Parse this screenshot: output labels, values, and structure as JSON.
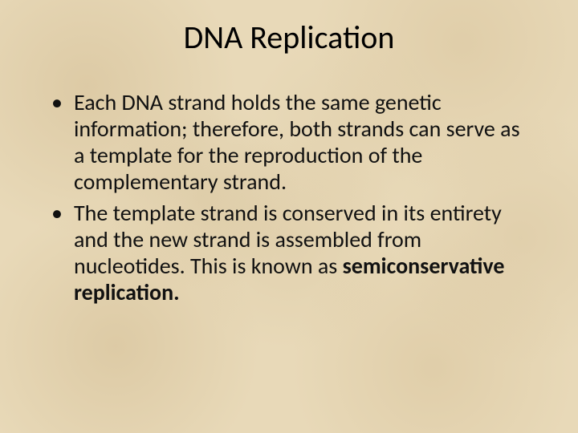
{
  "slide": {
    "title": "DNA Replication",
    "bullets": [
      {
        "text_pre": "Each DNA strand holds the same genetic information; therefore, both strands can serve as a template for the reproduction of the complementary strand.",
        "bold": "",
        "text_post": ""
      },
      {
        "text_pre": "The template strand is conserved in its entirety and the new strand is assembled from nucleotides.  This is known as ",
        "bold": "semiconservative replication.",
        "text_post": ""
      }
    ],
    "colors": {
      "background_base": "#e8d9b8",
      "text": "#1a1a1a"
    },
    "typography": {
      "title_fontsize": 40,
      "body_fontsize": 28,
      "font_family": "Calibri"
    }
  }
}
